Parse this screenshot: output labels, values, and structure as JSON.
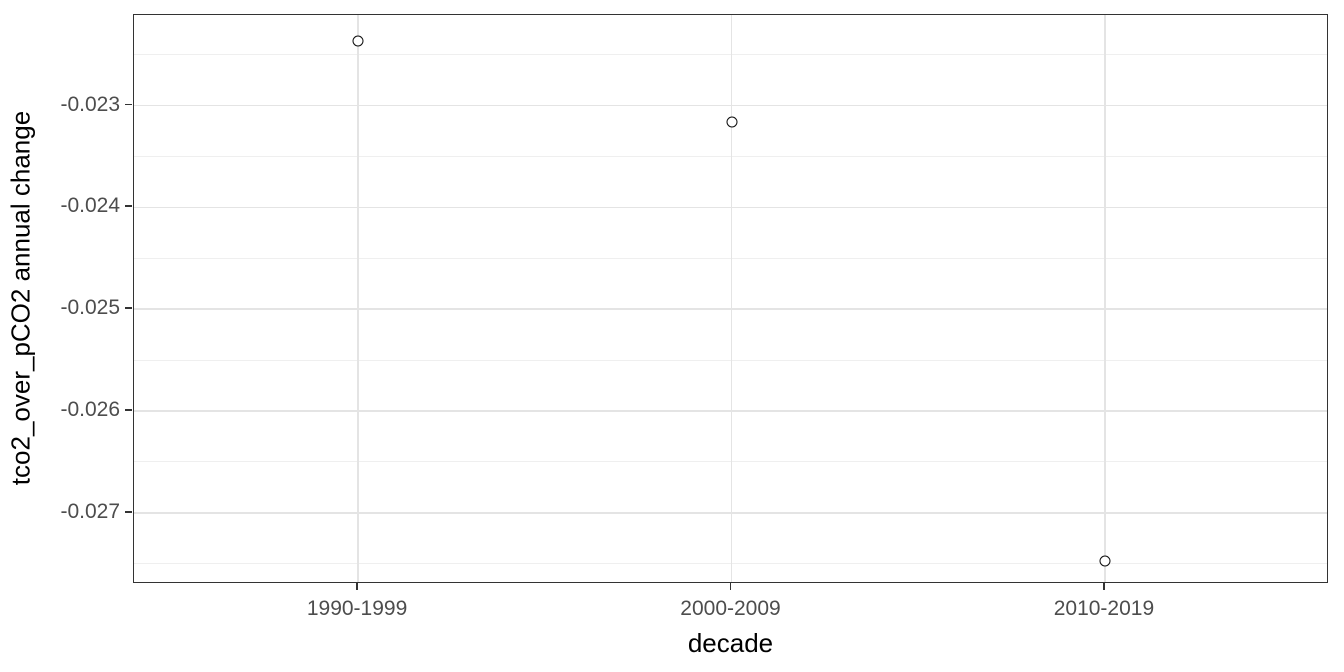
{
  "chart_data": {
    "type": "scatter",
    "title": "",
    "xlabel": "decade",
    "ylabel": "tco2_over_pCO2 annual change",
    "categories": [
      "1990-1999",
      "2000-2009",
      "2010-2019"
    ],
    "series": [
      {
        "name": "tco2_over_pCO2 annual change",
        "values": [
          -0.02237,
          -0.02316,
          -0.02747
        ]
      }
    ],
    "ylim": [
      -0.0277,
      -0.02211
    ],
    "y_major_ticks": [
      -0.023,
      -0.024,
      -0.025,
      -0.026,
      -0.027
    ],
    "y_tick_labels": [
      "-0.023",
      "-0.024",
      "-0.025",
      "-0.026",
      "-0.027"
    ],
    "y_minor_gridlines": [
      -0.0225,
      -0.0235,
      -0.0245,
      -0.0255,
      -0.0265,
      -0.0275
    ],
    "grid": true,
    "legend_position": "none",
    "marker": "open-circle",
    "style": {
      "point_stroke_color": "#0d0d0d",
      "point_fill_color": "#ffffff",
      "panel_border_color": "#333333",
      "major_grid_color": "#e4e4e4",
      "minor_grid_color": "#efefef",
      "tick_color": "#333333",
      "tick_label_color": "#4d4d4d",
      "axis_title_color": "#000000",
      "background_color": "#ffffff"
    }
  }
}
